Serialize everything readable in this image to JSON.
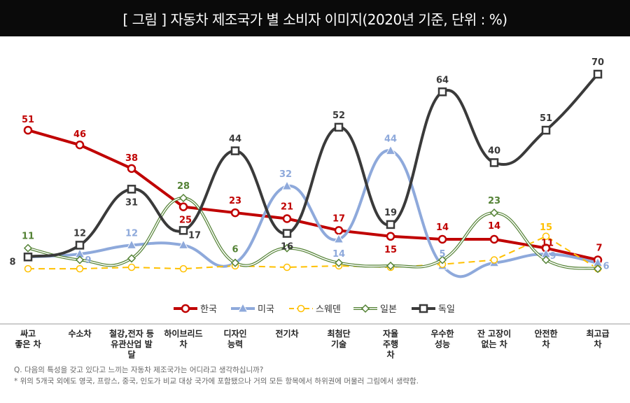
{
  "title": "[ 그림 ]  자동차 제조국가 별 소비자 이미지(2020년 기준, 단위 : %)",
  "footnotes": [
    "Q. 다음의 특성을 갖고 있다고 느끼는 자동차 제조국가는 어디라고 생각하십니까?",
    "* 위의 5개국 외에도 영국, 프랑스, 중국, 인도가 비교 대상 국가에 포함됐으나 거의 모든 항목에서 하위권에 머물러 그림에서 생략함."
  ],
  "chart_data": {
    "type": "line",
    "title": "자동차 제조국가 별 소비자 이미지(2020년 기준, 단위 : %)",
    "categories": [
      [
        "싸고",
        "좋은 차"
      ],
      [
        "수소차"
      ],
      [
        "철강,전자 등",
        "유관산업 발",
        "달"
      ],
      [
        "하이브리드",
        "차"
      ],
      [
        "디자인",
        "능력"
      ],
      [
        "전기차"
      ],
      [
        "최첨단",
        "기술"
      ],
      [
        "자율",
        "주행",
        "차"
      ],
      [
        "우수한",
        "성능"
      ],
      [
        "잔 고장이",
        "없는 차"
      ],
      [
        "안전한",
        "차"
      ],
      [
        "최고급",
        "차"
      ]
    ],
    "series": [
      {
        "name": "한국",
        "color": "#c00000",
        "style": "solid",
        "marker": "circle",
        "smooth": false,
        "values": [
          51,
          46,
          38,
          25,
          23,
          21,
          17,
          15,
          14,
          14,
          11,
          7
        ],
        "labels_shown": true
      },
      {
        "name": "미국",
        "color": "#8ea9db",
        "style": "solid",
        "marker": "triangle",
        "smooth": true,
        "values": [
          8,
          9,
          12,
          12,
          6,
          32,
          14,
          44,
          5,
          6,
          9,
          6
        ],
        "labels_shown": [
          false,
          true,
          true,
          false,
          false,
          true,
          true,
          true,
          true,
          false,
          true,
          true
        ]
      },
      {
        "name": "스웨덴",
        "color": "#ffc000",
        "style": "dashed",
        "marker": "circle-open",
        "smooth": false,
        "values": [
          4,
          4,
          4.5,
          4,
          5,
          4.5,
          5,
          4.5,
          5.5,
          7,
          15,
          4
        ],
        "labels_shown": [
          false,
          false,
          false,
          false,
          false,
          false,
          false,
          false,
          false,
          false,
          true,
          false
        ]
      },
      {
        "name": "일본",
        "color": "#548235",
        "style": "solid-double",
        "marker": "diamond",
        "smooth": true,
        "values": [
          11,
          7,
          7.5,
          28,
          6,
          11,
          6,
          5,
          7,
          23,
          7,
          4
        ],
        "labels_shown": [
          true,
          false,
          false,
          true,
          true,
          false,
          false,
          false,
          false,
          true,
          false,
          false
        ]
      },
      {
        "name": "독일",
        "color": "#3a3a3a",
        "style": "solid",
        "marker": "square",
        "smooth": true,
        "values": [
          8,
          12,
          31,
          17,
          44,
          16,
          52,
          19,
          64,
          40,
          51,
          70
        ],
        "labels_shown": true
      }
    ],
    "ylim": [
      0,
      70
    ],
    "grid": false,
    "legend": "bottom-center"
  }
}
